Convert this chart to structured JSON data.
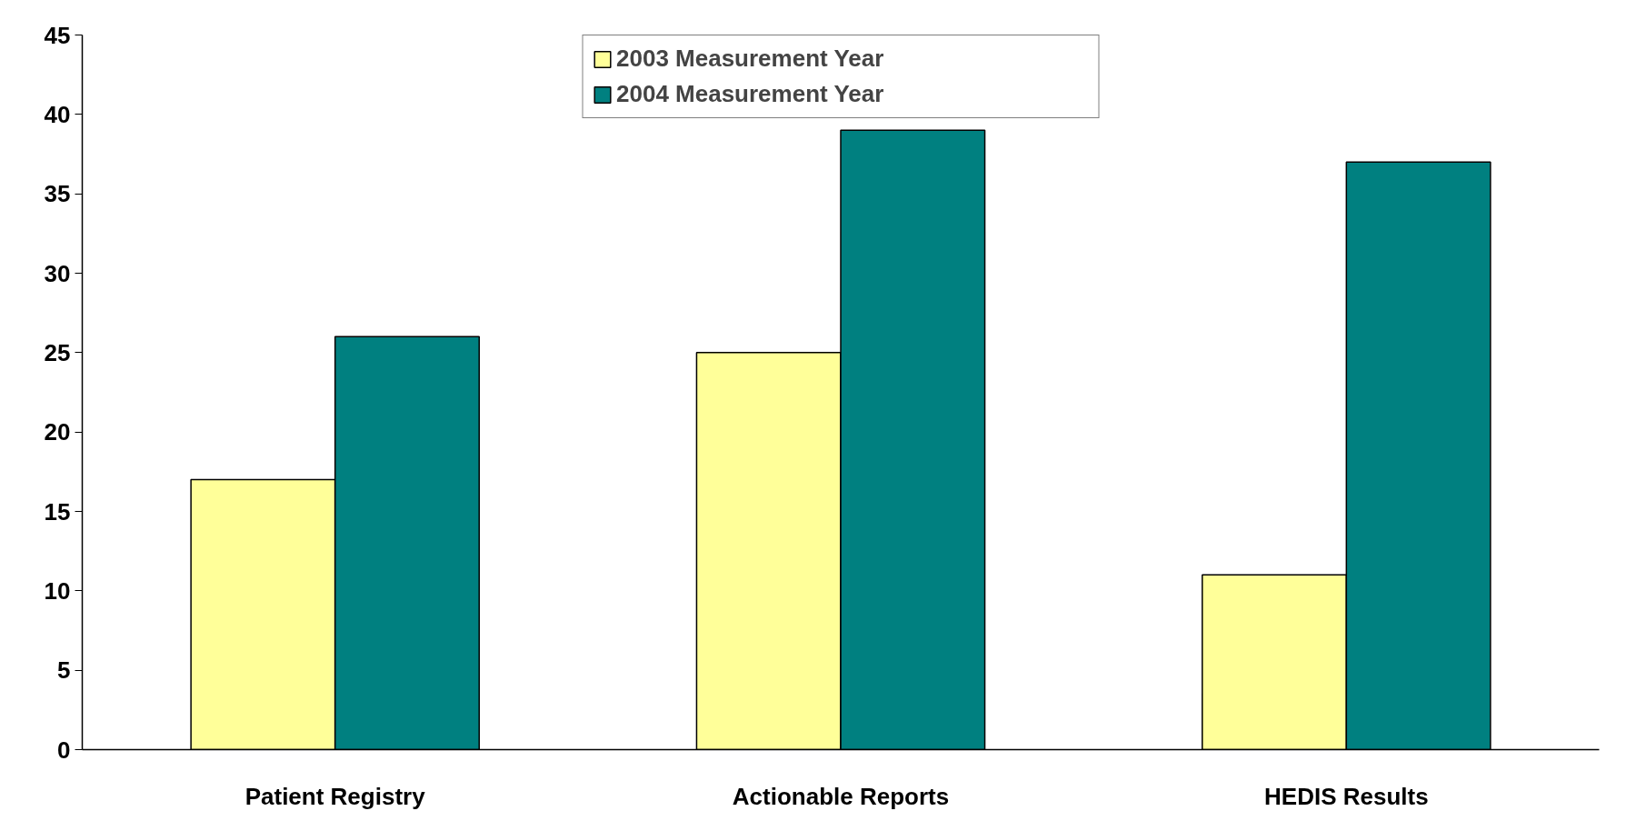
{
  "chart_data": {
    "type": "bar",
    "categories": [
      "Patient Registry",
      "Actionable Reports",
      "HEDIS Results"
    ],
    "series": [
      {
        "name": "2003 Measurement Year",
        "color": "#ffff99",
        "values": [
          17,
          25,
          11
        ]
      },
      {
        "name": "2004 Measurement Year",
        "color": "#008080",
        "values": [
          26,
          39,
          37
        ]
      }
    ],
    "ylim": [
      0,
      45
    ],
    "yticks": [
      0,
      5,
      10,
      15,
      20,
      25,
      30,
      35,
      40,
      45
    ],
    "grid": false,
    "legend": "top"
  }
}
